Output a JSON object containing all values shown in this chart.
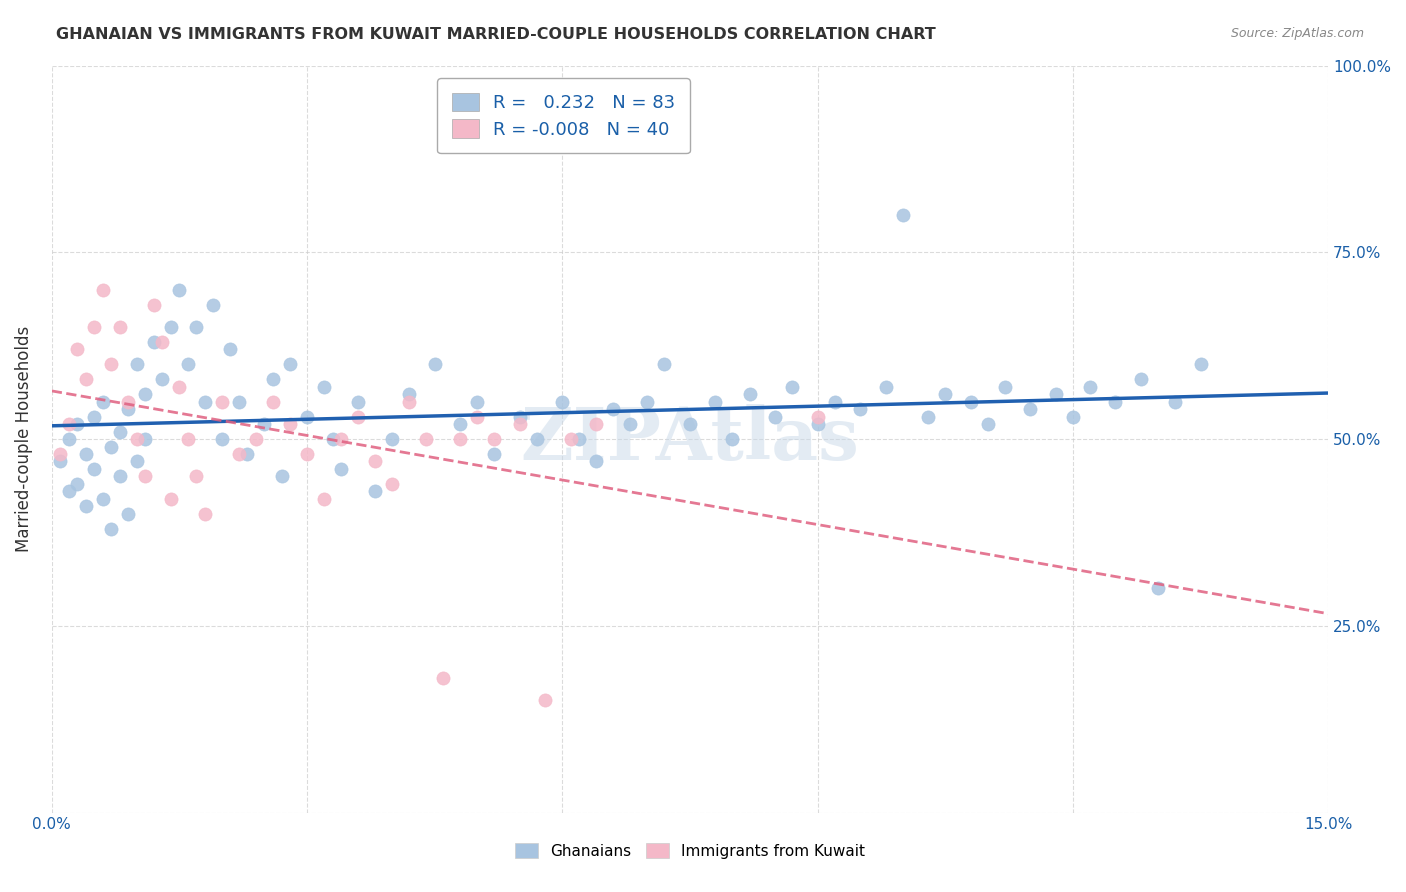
{
  "title": "GHANAIAN VS IMMIGRANTS FROM KUWAIT MARRIED-COUPLE HOUSEHOLDS CORRELATION CHART",
  "source": "Source: ZipAtlas.com",
  "ylabel": "Married-couple Households",
  "x_min": 0.0,
  "x_max": 0.15,
  "y_min": 0.0,
  "y_max": 1.0,
  "x_ticks": [
    0.0,
    0.03,
    0.06,
    0.09,
    0.12,
    0.15
  ],
  "x_tick_labels": [
    "0.0%",
    "",
    "",
    "",
    "",
    "15.0%"
  ],
  "y_ticks": [
    0.0,
    0.25,
    0.5,
    0.75,
    1.0
  ],
  "y_tick_labels": [
    "",
    "25.0%",
    "50.0%",
    "75.0%",
    "100.0%"
  ],
  "ghanaians_R": 0.232,
  "ghanaians_N": 83,
  "kuwait_R": -0.008,
  "kuwait_N": 40,
  "ghanaian_color": "#a8c4e0",
  "kuwait_color": "#f4b8c8",
  "ghanaian_line_color": "#2060b0",
  "kuwait_line_color": "#e06080",
  "ghanaian_scatter_x": [
    0.001,
    0.002,
    0.002,
    0.003,
    0.003,
    0.004,
    0.004,
    0.005,
    0.005,
    0.006,
    0.006,
    0.007,
    0.007,
    0.008,
    0.008,
    0.009,
    0.009,
    0.01,
    0.01,
    0.011,
    0.011,
    0.012,
    0.013,
    0.014,
    0.015,
    0.016,
    0.017,
    0.018,
    0.019,
    0.02,
    0.021,
    0.022,
    0.023,
    0.025,
    0.026,
    0.027,
    0.028,
    0.03,
    0.032,
    0.033,
    0.034,
    0.036,
    0.038,
    0.04,
    0.042,
    0.045,
    0.048,
    0.05,
    0.052,
    0.055,
    0.057,
    0.06,
    0.062,
    0.064,
    0.066,
    0.068,
    0.07,
    0.072,
    0.075,
    0.078,
    0.08,
    0.082,
    0.085,
    0.087,
    0.09,
    0.092,
    0.095,
    0.098,
    0.1,
    0.103,
    0.105,
    0.108,
    0.11,
    0.112,
    0.115,
    0.118,
    0.12,
    0.122,
    0.125,
    0.128,
    0.13,
    0.132,
    0.135
  ],
  "ghanaian_scatter_y": [
    0.47,
    0.5,
    0.43,
    0.52,
    0.44,
    0.48,
    0.41,
    0.53,
    0.46,
    0.55,
    0.42,
    0.49,
    0.38,
    0.51,
    0.45,
    0.54,
    0.4,
    0.47,
    0.6,
    0.5,
    0.56,
    0.63,
    0.58,
    0.65,
    0.7,
    0.6,
    0.65,
    0.55,
    0.68,
    0.5,
    0.62,
    0.55,
    0.48,
    0.52,
    0.58,
    0.45,
    0.6,
    0.53,
    0.57,
    0.5,
    0.46,
    0.55,
    0.43,
    0.5,
    0.56,
    0.6,
    0.52,
    0.55,
    0.48,
    0.53,
    0.5,
    0.55,
    0.5,
    0.47,
    0.54,
    0.52,
    0.55,
    0.6,
    0.52,
    0.55,
    0.5,
    0.56,
    0.53,
    0.57,
    0.52,
    0.55,
    0.54,
    0.57,
    0.8,
    0.53,
    0.56,
    0.55,
    0.52,
    0.57,
    0.54,
    0.56,
    0.53,
    0.57,
    0.55,
    0.58,
    0.3,
    0.55,
    0.6
  ],
  "kuwait_scatter_x": [
    0.001,
    0.002,
    0.003,
    0.004,
    0.005,
    0.006,
    0.007,
    0.008,
    0.009,
    0.01,
    0.011,
    0.012,
    0.013,
    0.014,
    0.015,
    0.016,
    0.017,
    0.018,
    0.02,
    0.022,
    0.024,
    0.026,
    0.028,
    0.03,
    0.032,
    0.034,
    0.036,
    0.038,
    0.04,
    0.042,
    0.044,
    0.046,
    0.048,
    0.05,
    0.052,
    0.055,
    0.058,
    0.061,
    0.064,
    0.09
  ],
  "kuwait_scatter_y": [
    0.48,
    0.52,
    0.62,
    0.58,
    0.65,
    0.7,
    0.6,
    0.65,
    0.55,
    0.5,
    0.45,
    0.68,
    0.63,
    0.42,
    0.57,
    0.5,
    0.45,
    0.4,
    0.55,
    0.48,
    0.5,
    0.55,
    0.52,
    0.48,
    0.42,
    0.5,
    0.53,
    0.47,
    0.44,
    0.55,
    0.5,
    0.18,
    0.5,
    0.53,
    0.5,
    0.52,
    0.15,
    0.5,
    0.52,
    0.53
  ],
  "background_color": "#ffffff",
  "grid_color": "#cccccc",
  "watermark": "ZIPAtlas",
  "tick_color": "#1a5fa8",
  "text_color": "#333333",
  "source_color": "#888888",
  "legend_text_color": "#1a5fa8",
  "legend_edge_color": "#aaaaaa",
  "bottom_legend_labels": [
    "Ghanaians",
    "Immigrants from Kuwait"
  ]
}
